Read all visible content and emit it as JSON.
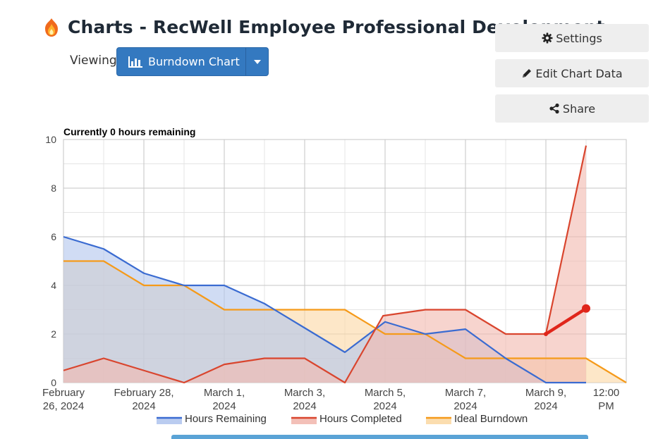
{
  "header": {
    "title": "Charts - RecWell Employee Professional Development",
    "logo_icon": "flame-icon"
  },
  "view_selector": {
    "label": "Viewing",
    "selected": "Burndown Chart",
    "icon": "bar-chart-icon"
  },
  "actions": {
    "settings": "Settings",
    "edit": "Edit Chart Data",
    "share": "Share"
  },
  "chart_data": {
    "type": "area",
    "title": "Currently 0 hours remaining",
    "xlabel": "",
    "ylabel": "",
    "ylim": [
      0,
      10
    ],
    "yticks": [
      "0",
      "2",
      "4",
      "6",
      "8",
      "10"
    ],
    "xlim": [
      0,
      14
    ],
    "x_tick_labels": [
      {
        "x": 0,
        "lines": [
          "February",
          "26, 2024"
        ]
      },
      {
        "x": 2,
        "lines": [
          "February 28,",
          "2024"
        ]
      },
      {
        "x": 4,
        "lines": [
          "March 1,",
          "2024"
        ]
      },
      {
        "x": 6,
        "lines": [
          "March 3,",
          "2024"
        ]
      },
      {
        "x": 8,
        "lines": [
          "March 5,",
          "2024"
        ]
      },
      {
        "x": 10,
        "lines": [
          "March 7,",
          "2024"
        ]
      },
      {
        "x": 12,
        "lines": [
          "March 9,",
          "2024"
        ]
      },
      {
        "x": 13.5,
        "lines": [
          "12:00",
          "PM"
        ]
      }
    ],
    "grid": true,
    "legend_position": "bottom",
    "series": [
      {
        "name": "Hours Remaining",
        "color": "#3a6bd1",
        "fill": "#b3c6ee",
        "x": [
          0,
          1,
          2,
          3,
          4,
          5,
          6,
          7,
          8,
          9,
          10,
          11,
          12,
          13
        ],
        "values": [
          6,
          5.5,
          4.5,
          4,
          4,
          3.25,
          2.25,
          1.25,
          2.5,
          2,
          2.2,
          1,
          0,
          0
        ]
      },
      {
        "name": "Hours Completed",
        "color": "#d9452e",
        "fill": "#f2b9b0",
        "x": [
          0,
          1,
          2,
          3,
          4,
          5,
          6,
          7,
          7.95,
          9,
          10,
          11,
          12,
          13
        ],
        "values": [
          0.5,
          1,
          0.5,
          0,
          0.75,
          1,
          1,
          0,
          2.75,
          3,
          3,
          2,
          2,
          9.75
        ]
      },
      {
        "name": "Ideal Burndown",
        "color": "#f59a1a",
        "fill": "#fbd9a6",
        "x": [
          0,
          1,
          2,
          3,
          4,
          5,
          6,
          7,
          8,
          9,
          10,
          11,
          12,
          13,
          14
        ],
        "values": [
          5,
          5,
          4,
          4,
          3,
          3,
          3,
          3,
          2,
          2,
          1,
          1,
          1,
          1,
          0
        ]
      }
    ],
    "highlight_segment": {
      "color": "#e0261b",
      "x": [
        12,
        13
      ],
      "values": [
        2,
        3.05
      ]
    }
  }
}
